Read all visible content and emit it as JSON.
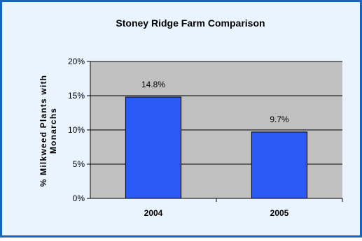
{
  "chart_data": {
    "type": "bar",
    "title": "Stoney Ridge Farm Comparison",
    "ylabel_line1": "% Milkweed Plants with",
    "ylabel_line2": "Monarchs",
    "xlabel": "",
    "categories": [
      "2004",
      "2005"
    ],
    "values": [
      14.8,
      9.7
    ],
    "data_labels": [
      "14.8%",
      "9.7%"
    ],
    "ylim": [
      0,
      20
    ],
    "yticks": [
      0,
      5,
      10,
      15,
      20
    ],
    "ytick_labels": [
      "0%",
      "5%",
      "10%",
      "15%",
      "20%"
    ],
    "grid": true,
    "legend": "none"
  },
  "colors": {
    "frame_border": "#1565C0",
    "background": "#EAF4FF",
    "plot_area": "#C0C0C0",
    "bar_fill": "#2B59F5",
    "bar_stroke": "#000000",
    "gridline": "#000000",
    "text": "#000000"
  }
}
